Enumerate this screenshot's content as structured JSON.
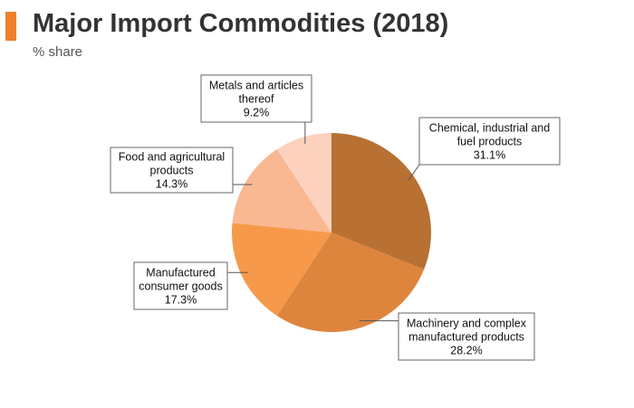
{
  "header": {
    "accent_color": "#f07f2a"
  },
  "chart_data": {
    "type": "pie",
    "title": "Major Import Commodities (2018)",
    "subtitle": "% share",
    "start_angle_deg": 0,
    "direction": "clockwise",
    "slices": [
      {
        "label_lines": [
          "Chemical, industrial and",
          "fuel products"
        ],
        "value_label": "31.1%",
        "value": 31.1,
        "color": "#b87033"
      },
      {
        "label_lines": [
          "Machinery and complex",
          "manufactured products"
        ],
        "value_label": "28.2%",
        "value": 28.2,
        "color": "#de853d"
      },
      {
        "label_lines": [
          "Manufactured",
          "consumer goods"
        ],
        "value_label": "17.3%",
        "value": 17.3,
        "color": "#f7994a"
      },
      {
        "label_lines": [
          "Food and agricultural",
          "products"
        ],
        "value_label": "14.3%",
        "value": 14.3,
        "color": "#f9b892"
      },
      {
        "label_lines": [
          "Metals and articles",
          "thereof"
        ],
        "value_label": "9.2%",
        "value": 9.2,
        "color": "#fcd2be"
      }
    ]
  }
}
